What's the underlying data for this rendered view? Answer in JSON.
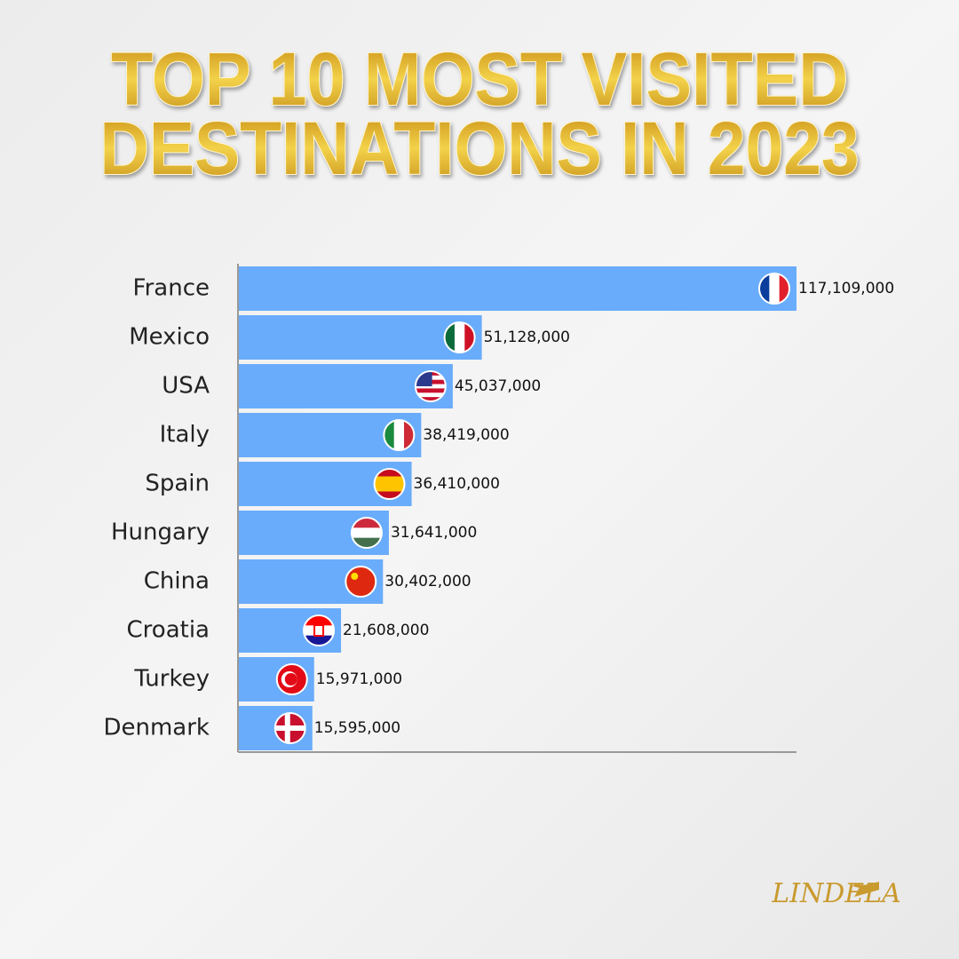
{
  "chart_data": {
    "type": "barh",
    "title": [
      "TOP 10 MOST VISITED",
      "DESTINATIONS IN 2023"
    ],
    "categories": [
      "France",
      "Mexico",
      "USA",
      "Italy",
      "Spain",
      "Hungary",
      "China",
      "Croatia",
      "Turkey",
      "Denmark"
    ],
    "values": [
      117109000,
      51128000,
      45037000,
      38419000,
      36410000,
      31641000,
      30402000,
      21608000,
      15971000,
      15595000
    ],
    "value_labels": [
      "117,109,000",
      "51,128,000",
      "45,037,000",
      "38,419,000",
      "36,410,000",
      "31,641,000",
      "30,402,000",
      "21,608,000",
      "15,971,000",
      "15,595,000"
    ],
    "color": "#69acfb",
    "xlim": [
      0,
      117109000
    ]
  },
  "logo": "LINDELA"
}
